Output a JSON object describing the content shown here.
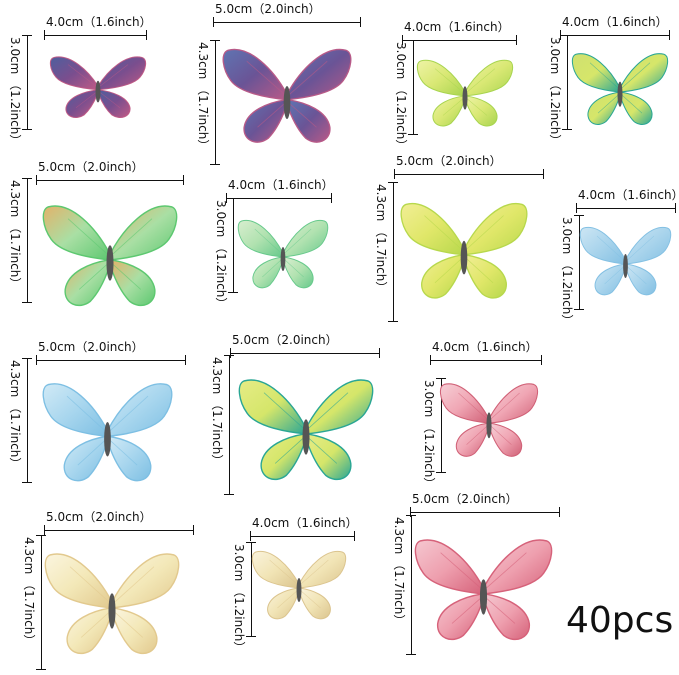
{
  "count_label": "40pcs",
  "items": [
    {
      "w": "4.0cm（1.6inch）",
      "h": "3.0cm （1.2inch）",
      "colors": [
        "#7a4e8e",
        "#c05a86",
        "#4e5f9e"
      ]
    },
    {
      "w": "5.0cm（2.0inch）",
      "h": "4.3cm （1.7inch）",
      "colors": [
        "#6a5496",
        "#b85a88",
        "#5f74b2"
      ]
    },
    {
      "w": "4.0cm（1.6inch）",
      "h": "3.0cm （1.2inch）",
      "colors": [
        "#d9e874",
        "#a7d44e",
        "#eef3a6"
      ]
    },
    {
      "w": "4.0cm（1.6inch）",
      "h": "3.0cm （1.2inch）",
      "colors": [
        "#d6e66a",
        "#2aa694",
        "#cfe070"
      ]
    },
    {
      "w": "5.0cm（2.0inch）",
      "h": "4.3cm （1.7inch）",
      "colors": [
        "#a9dfa4",
        "#5dc870",
        "#e3b26a"
      ]
    },
    {
      "w": "4.0cm（1.6inch）",
      "h": "3.0cm （1.2inch）",
      "colors": [
        "#b1e2b0",
        "#66c98b",
        "#d8eecf"
      ]
    },
    {
      "w": "5.0cm（2.0inch）",
      "h": "4.3cm （1.7inch）",
      "colors": [
        "#e0e769",
        "#b7d84c",
        "#f1ee95"
      ]
    },
    {
      "w": "4.0cm（1.6inch）",
      "h": "3.0cm （1.2inch）",
      "colors": [
        "#a9d4ec",
        "#83c0e3",
        "#cde6f4"
      ]
    },
    {
      "w": "5.0cm（2.0inch）",
      "h": "4.3cm （1.7inch）",
      "colors": [
        "#a8d6ee",
        "#7dbfe3",
        "#d1eaf6"
      ]
    },
    {
      "w": "5.0cm（2.0inch）",
      "h": "4.3cm （1.7inch）",
      "colors": [
        "#d5e66a",
        "#2aa694",
        "#e6ec86"
      ]
    },
    {
      "w": "4.0cm（1.6inch）",
      "h": "3.0cm （1.2inch）",
      "colors": [
        "#f0a6b4",
        "#d06076",
        "#f6cfd6"
      ]
    },
    {
      "w": "5.0cm（2.0inch）",
      "h": "4.3cm （1.7inch）",
      "colors": [
        "#f3e8b8",
        "#e2c98e",
        "#fbf5df"
      ]
    },
    {
      "w": "4.0cm（1.6inch）",
      "h": "3.0cm （1.2inch）",
      "colors": [
        "#f1e4b5",
        "#dbc48e",
        "#faf3dc"
      ]
    },
    {
      "w": "5.0cm（2.0inch）",
      "h": "4.3cm （1.7inch）",
      "colors": [
        "#ee9fae",
        "#d6627a",
        "#f5c7d0"
      ]
    }
  ]
}
